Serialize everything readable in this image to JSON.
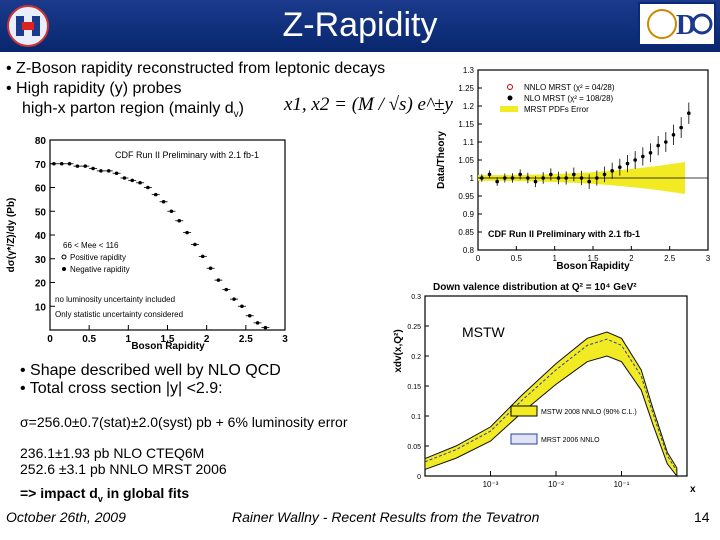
{
  "slide": {
    "title": "Z-Rapidity",
    "bullets_top": [
      "• Z-Boson rapidity reconstructed from leptonic decays",
      "• High rapidity (y) probes",
      "high-x parton region (mainly d",
      "v",
      ")"
    ],
    "formula": "x1, x2 = (M / √s) e^±y",
    "bullets_mid": [
      "• Shape described well by NLO QCD",
      "• Total cross section |y| <2.9:"
    ],
    "sigma": "σ=256.0±0.7(stat)±2.0(syst) pb + 6% luminosity error",
    "pred1": "236.1±1.93 pb NLO   CTEQ6M",
    "pred2": "252.6 ±3.1  pb NNLO MRST 2006",
    "impact_a": "=> impact d",
    "impact_sub": "v",
    "impact_b": " in global fits",
    "mstw_label": "MSTW"
  },
  "footer": {
    "date": "October 26th, 2009",
    "author": "Rainer Wallny - Recent Results from the Tevatron",
    "page": "14"
  },
  "chart_data": [
    {
      "type": "scatter",
      "title": "CDF Run II Preliminary with 2.1 fb-1",
      "xlabel": "Boson Rapidity",
      "ylabel": "dσ(γ*/Z)/dy (Pb)",
      "xlim": [
        0,
        3
      ],
      "ylim": [
        0,
        80
      ],
      "xticks": [
        "0",
        "0.5",
        "1",
        "1.5",
        "2",
        "2.5",
        "3"
      ],
      "yticks": [
        "10",
        "20",
        "30",
        "40",
        "50",
        "60",
        "70",
        "80"
      ],
      "legend": [
        "66 < Mee < 116",
        "Positive rapidity",
        "Negative rapidity"
      ],
      "annotations": [
        "no luminosity uncertainty included",
        "Only statistic uncertainty considered"
      ],
      "x": [
        0.05,
        0.15,
        0.25,
        0.35,
        0.45,
        0.55,
        0.65,
        0.75,
        0.85,
        0.95,
        1.05,
        1.15,
        1.25,
        1.35,
        1.45,
        1.55,
        1.65,
        1.75,
        1.85,
        1.95,
        2.05,
        2.15,
        2.25,
        2.35,
        2.45,
        2.55,
        2.65,
        2.75
      ],
      "y": [
        70,
        70,
        70,
        69,
        69,
        68,
        67,
        67,
        66,
        64,
        63,
        62,
        60,
        57,
        54,
        50,
        46,
        41,
        36,
        31,
        26,
        21,
        17,
        13,
        10,
        6,
        3,
        1
      ]
    },
    {
      "type": "scatter",
      "title": "CDF Run II Preliminary with 2.1 fb-1",
      "xlabel": "Boson Rapidity",
      "ylabel": "Data/Theory",
      "xlim": [
        0,
        3
      ],
      "ylim": [
        0.8,
        1.3
      ],
      "xticks": [
        "0",
        "0.5",
        "1",
        "1.5",
        "2",
        "2.5",
        "3"
      ],
      "yticks": [
        "0.8",
        "0.85",
        "0.9",
        "0.95",
        "1",
        "1.05",
        "1.1",
        "1.15",
        "1.2",
        "1.25",
        "1.3"
      ],
      "legend": [
        "NNLO MRST (χ² = 04/28)",
        "NLO MRST (χ² = 108/28)",
        "MRST PDFs Error"
      ],
      "x": [
        0.05,
        0.15,
        0.25,
        0.35,
        0.45,
        0.55,
        0.65,
        0.75,
        0.85,
        0.95,
        1.05,
        1.15,
        1.25,
        1.35,
        1.45,
        1.55,
        1.65,
        1.75,
        1.85,
        1.95,
        2.05,
        2.15,
        2.25,
        2.35,
        2.45,
        2.55,
        2.65,
        2.75
      ],
      "y": [
        1.0,
        1.01,
        0.99,
        1.0,
        1.0,
        1.01,
        1.0,
        0.99,
        1.0,
        1.01,
        1.0,
        1.0,
        1.01,
        1.0,
        0.99,
        1.0,
        1.01,
        1.02,
        1.03,
        1.04,
        1.05,
        1.06,
        1.07,
        1.09,
        1.1,
        1.12,
        1.14,
        1.18
      ]
    },
    {
      "type": "area",
      "title": "Down valence distribution at Q² = 10⁴ GeV²",
      "xlabel": "x",
      "ylabel": "xdv(x,Q²)",
      "xlim": [
        0.0001,
        1
      ],
      "ylim": [
        0,
        0.3
      ],
      "xticks": [
        "10⁻³",
        "10⁻²",
        "10⁻¹"
      ],
      "yticks": [
        "0",
        "0.05",
        "0.1",
        "0.15",
        "0.2",
        "0.25",
        "0.3"
      ],
      "legend": [
        "MSTW 2008 NNLO (90% C.L.)",
        "MRST 2006 NNLO"
      ],
      "x": [
        0.0001,
        0.0003,
        0.001,
        0.003,
        0.01,
        0.03,
        0.06,
        0.1,
        0.2,
        0.3,
        0.5,
        0.7
      ],
      "y": [
        0.02,
        0.04,
        0.07,
        0.12,
        0.17,
        0.21,
        0.22,
        0.21,
        0.16,
        0.1,
        0.03,
        0.005
      ]
    }
  ]
}
